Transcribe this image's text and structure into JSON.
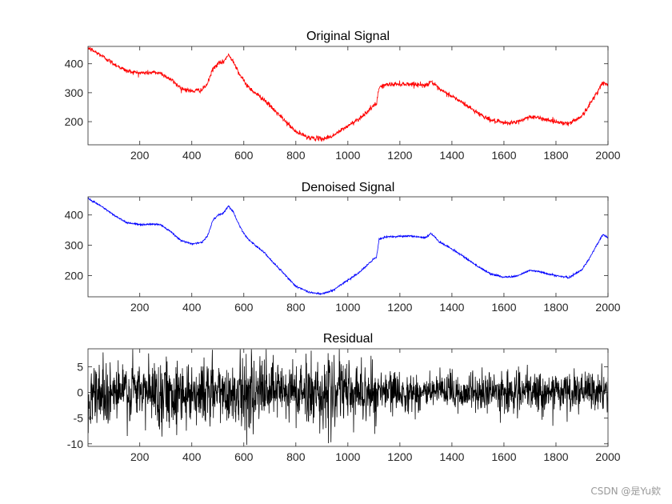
{
  "figure": {
    "watermark": "CSDN @是Yu欸"
  },
  "chart_data": [
    {
      "type": "line",
      "title": "Original Signal",
      "xlabel": "",
      "ylabel": "",
      "xlim": [
        1,
        2000
      ],
      "ylim": [
        120,
        460
      ],
      "xticks": [
        200,
        400,
        600,
        800,
        1000,
        1200,
        1400,
        1600,
        1800,
        2000
      ],
      "yticks": [
        200,
        300,
        400
      ],
      "grid": false,
      "series": [
        {
          "color": "#ff0000",
          "noise_amplitude": 8,
          "x": [
            1,
            50,
            100,
            150,
            200,
            250,
            280,
            320,
            360,
            400,
            440,
            460,
            480,
            500,
            520,
            540,
            560,
            580,
            600,
            620,
            650,
            680,
            700,
            750,
            800,
            850,
            900,
            940,
            1000,
            1050,
            1100,
            1110,
            1120,
            1150,
            1200,
            1250,
            1300,
            1320,
            1350,
            1400,
            1450,
            1500,
            1550,
            1600,
            1650,
            1700,
            1750,
            1800,
            1850,
            1900,
            1920,
            1950,
            1980,
            2000
          ],
          "values": [
            455,
            430,
            400,
            375,
            368,
            370,
            368,
            345,
            315,
            305,
            310,
            330,
            380,
            400,
            405,
            430,
            410,
            370,
            340,
            318,
            295,
            275,
            255,
            210,
            165,
            145,
            140,
            150,
            185,
            215,
            255,
            260,
            320,
            328,
            330,
            330,
            325,
            340,
            312,
            288,
            260,
            230,
            205,
            195,
            198,
            218,
            210,
            200,
            193,
            220,
            245,
            290,
            335,
            325
          ]
        }
      ]
    },
    {
      "type": "line",
      "title": "Denoised Signal",
      "xlabel": "",
      "ylabel": "",
      "xlim": [
        1,
        2000
      ],
      "ylim": [
        130,
        460
      ],
      "xticks": [
        200,
        400,
        600,
        800,
        1000,
        1200,
        1400,
        1600,
        1800,
        2000
      ],
      "yticks": [
        200,
        300,
        400
      ],
      "grid": false,
      "series": [
        {
          "color": "#0000ff",
          "noise_amplitude": 3,
          "x": [
            1,
            50,
            100,
            150,
            200,
            250,
            280,
            320,
            360,
            400,
            440,
            460,
            480,
            500,
            520,
            540,
            560,
            580,
            600,
            620,
            650,
            680,
            700,
            750,
            800,
            850,
            900,
            940,
            1000,
            1050,
            1100,
            1110,
            1120,
            1150,
            1200,
            1250,
            1300,
            1320,
            1350,
            1400,
            1450,
            1500,
            1550,
            1600,
            1650,
            1700,
            1750,
            1800,
            1850,
            1900,
            1920,
            1950,
            1980,
            2000
          ],
          "values": [
            455,
            430,
            400,
            375,
            368,
            370,
            368,
            345,
            315,
            305,
            310,
            330,
            380,
            400,
            405,
            430,
            410,
            370,
            340,
            318,
            295,
            275,
            255,
            210,
            165,
            145,
            140,
            150,
            185,
            215,
            255,
            260,
            320,
            328,
            330,
            330,
            325,
            340,
            312,
            288,
            260,
            230,
            205,
            195,
            198,
            218,
            210,
            200,
            193,
            220,
            245,
            290,
            335,
            325
          ]
        }
      ]
    },
    {
      "type": "line",
      "title": "Residual",
      "xlabel": "",
      "ylabel": "",
      "xlim": [
        1,
        2000
      ],
      "ylim": [
        -10.5,
        8.5
      ],
      "xticks": [
        200,
        400,
        600,
        800,
        1000,
        1200,
        1400,
        1600,
        1800,
        2000
      ],
      "yticks": [
        -10,
        -5,
        0,
        5
      ],
      "grid": false,
      "series": [
        {
          "color": "#000000",
          "residual_spread": [
            {
              "x": [
                1,
                1110
              ],
              "std": 3.2
            },
            {
              "x": [
                1110,
                2000
              ],
              "std": 1.9
            }
          ]
        }
      ]
    }
  ]
}
